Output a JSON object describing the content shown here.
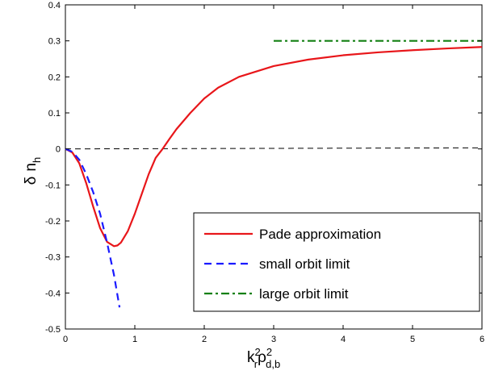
{
  "chart_data": {
    "type": "line",
    "xlim": [
      0,
      6
    ],
    "ylim": [
      -0.5,
      0.4
    ],
    "x_ticks": [
      0,
      1,
      2,
      3,
      4,
      5,
      6
    ],
    "y_ticks": [
      -0.5,
      -0.4,
      -0.3,
      -0.2,
      -0.1,
      0,
      0.1,
      0.2,
      0.3,
      0.4
    ],
    "x_tick_labels": [
      "0",
      "1",
      "2",
      "3",
      "4",
      "5",
      "6"
    ],
    "y_tick_labels": [
      "-0.5",
      "-0.4",
      "-0.3",
      "-0.2",
      "-0.1",
      "0",
      "0.1",
      "0.2",
      "0.3",
      "0.4"
    ],
    "xlabel": {
      "base1": "k",
      "sup1": "2",
      "sub1": "r",
      "base2": "ρ",
      "sup2": "2",
      "sub2": "d,b"
    },
    "ylabel": {
      "symbol": "δ",
      "base": "n",
      "sub": "h"
    },
    "grid": false,
    "legend_position": "bottom-right",
    "series": [
      {
        "name": "Pade approximation",
        "color": "#e8161a",
        "style": "solid",
        "x": [
          0,
          0.1,
          0.2,
          0.3,
          0.4,
          0.5,
          0.6,
          0.7,
          0.75,
          0.8,
          0.9,
          1.0,
          1.1,
          1.2,
          1.3,
          1.4,
          1.5,
          1.6,
          1.8,
          2.0,
          2.2,
          2.5,
          3.0,
          3.5,
          4.0,
          4.5,
          5.0,
          5.5,
          6.0
        ],
        "y": [
          0,
          -0.01,
          -0.04,
          -0.095,
          -0.16,
          -0.22,
          -0.258,
          -0.27,
          -0.268,
          -0.26,
          -0.228,
          -0.18,
          -0.125,
          -0.07,
          -0.025,
          0.0,
          0.028,
          0.055,
          0.1,
          0.14,
          0.17,
          0.2,
          0.23,
          0.248,
          0.26,
          0.268,
          0.274,
          0.279,
          0.283
        ]
      },
      {
        "name": "small orbit limit",
        "color": "#1a1aff",
        "style": "dashed",
        "x": [
          0,
          0.1,
          0.2,
          0.3,
          0.4,
          0.5,
          0.6,
          0.7,
          0.78
        ],
        "y": [
          0,
          -0.008,
          -0.03,
          -0.07,
          -0.12,
          -0.18,
          -0.26,
          -0.35,
          -0.44
        ]
      },
      {
        "name": "large orbit limit",
        "color": "#128012",
        "style": "dashdot",
        "x": [
          3,
          6
        ],
        "y": [
          0.3,
          0.3
        ]
      },
      {
        "name": "",
        "color": "#000000",
        "style": "dashed-thin",
        "x": [
          0,
          6
        ],
        "y": [
          0,
          0.003
        ]
      }
    ]
  }
}
